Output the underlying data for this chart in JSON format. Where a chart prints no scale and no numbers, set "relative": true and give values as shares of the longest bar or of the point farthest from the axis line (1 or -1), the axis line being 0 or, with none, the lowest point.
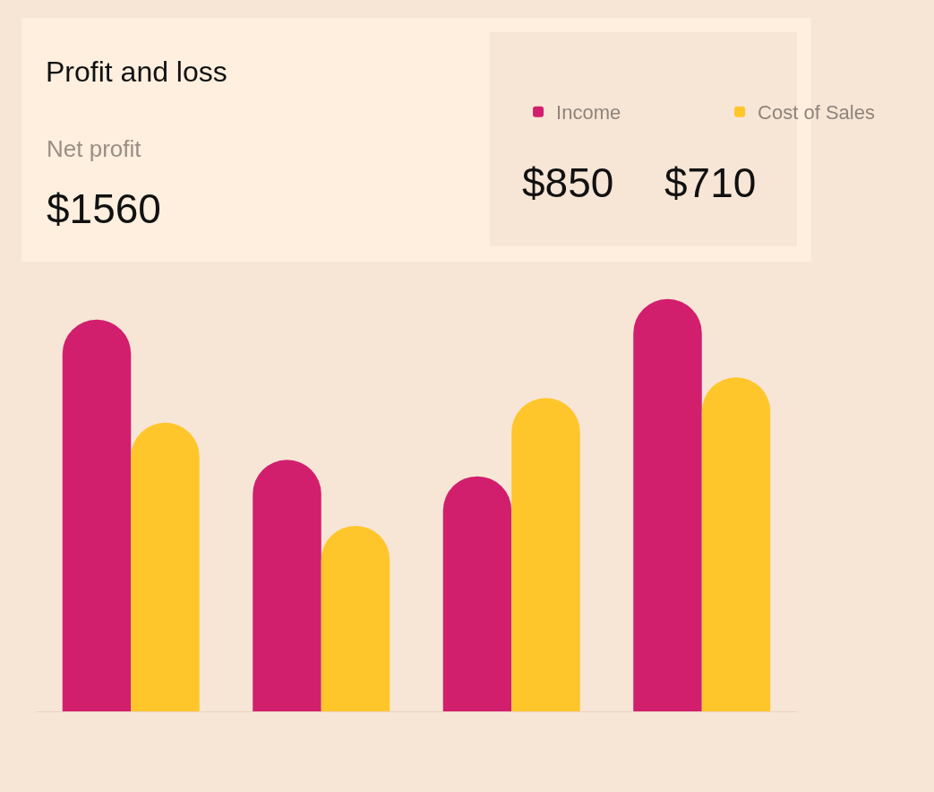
{
  "chart_data": {
    "type": "bar",
    "title": "Profit and loss",
    "relative": true,
    "legend": "top right",
    "categories": [
      null,
      null,
      null,
      null
    ],
    "series": [
      {
        "name": "Income",
        "color": "#d11f6e",
        "values": [
          0.95,
          0.61,
          0.57,
          1.0
        ]
      },
      {
        "name": "Cost of Sales",
        "color": "#ffc62b",
        "values": [
          0.7,
          0.45,
          0.76,
          0.81
        ]
      }
    ],
    "annotations": [
      "Net profit",
      "$1560",
      "$850",
      "$710"
    ]
  }
}
